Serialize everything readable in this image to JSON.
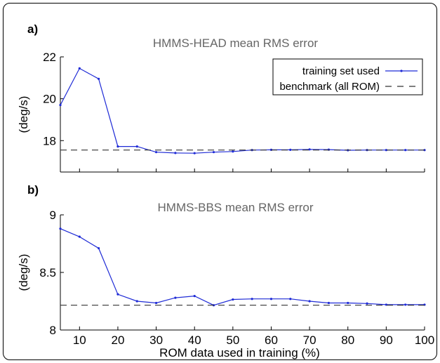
{
  "colors": {
    "series": "#1f2bd6",
    "benchmark": "#333333",
    "axis": "#000000",
    "title": "#666666"
  },
  "chart_data": [
    {
      "type": "line",
      "panel_label": "a)",
      "title": "HMMS-HEAD   mean RMS error",
      "ylabel": "(deg/s)",
      "xlabel": "",
      "xlim": [
        5,
        100
      ],
      "ylim": [
        16.5,
        22
      ],
      "yticks": [
        18,
        20,
        22
      ],
      "xticks": [
        10,
        20,
        30,
        40,
        50,
        60,
        70,
        80,
        90,
        100
      ],
      "show_xtick_labels": false,
      "grid": false,
      "legend": "top-right",
      "series": [
        {
          "name": "training set used",
          "style": "solid-marker",
          "x": [
            5,
            10,
            15,
            20,
            25,
            30,
            35,
            40,
            45,
            50,
            55,
            60,
            65,
            70,
            75,
            80,
            85,
            90,
            95,
            100
          ],
          "y": [
            19.7,
            21.45,
            20.95,
            17.72,
            17.72,
            17.45,
            17.41,
            17.4,
            17.45,
            17.48,
            17.55,
            17.56,
            17.56,
            17.58,
            17.57,
            17.54,
            17.55,
            17.55,
            17.55,
            17.55
          ]
        },
        {
          "name": "benchmark (all ROM)",
          "style": "dashed",
          "x": [
            5,
            100
          ],
          "y": [
            17.55,
            17.55
          ]
        }
      ]
    },
    {
      "type": "line",
      "panel_label": "b)",
      "title": "HMMS-BBS   mean RMS error",
      "ylabel": "(deg/s)",
      "xlabel": "ROM data used in training (%)",
      "xlim": [
        5,
        100
      ],
      "ylim": [
        8,
        9
      ],
      "yticks": [
        8,
        8.5,
        9
      ],
      "xticks": [
        10,
        20,
        30,
        40,
        50,
        60,
        70,
        80,
        90,
        100
      ],
      "show_xtick_labels": true,
      "grid": false,
      "series": [
        {
          "name": "",
          "style": "solid-marker",
          "x": [
            5,
            10,
            15,
            20,
            25,
            30,
            35,
            40,
            45,
            50,
            55,
            60,
            65,
            70,
            75,
            80,
            85,
            90,
            95,
            100
          ],
          "y": [
            8.88,
            8.81,
            8.71,
            8.31,
            8.25,
            8.235,
            8.28,
            8.295,
            8.215,
            8.265,
            8.27,
            8.27,
            8.27,
            8.25,
            8.235,
            8.235,
            8.23,
            8.22,
            8.22,
            8.22
          ]
        },
        {
          "name": "",
          "style": "dashed",
          "x": [
            5,
            100
          ],
          "y": [
            8.215,
            8.215
          ]
        }
      ]
    }
  ]
}
